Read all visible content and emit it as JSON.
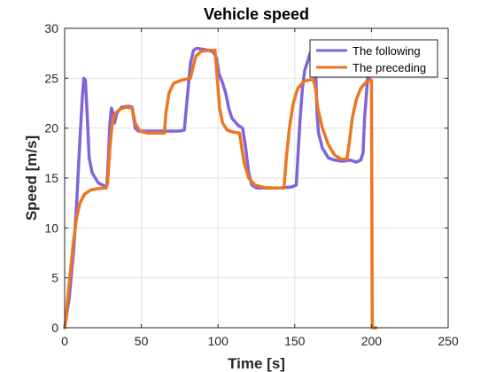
{
  "chart_data": {
    "type": "line",
    "title": "Vehicle speed",
    "xlabel": "Time [s]",
    "ylabel": "Speed [m/s]",
    "xlim": [
      0,
      250
    ],
    "ylim": [
      0,
      30
    ],
    "xticks": [
      0,
      50,
      100,
      150,
      200,
      250
    ],
    "yticks": [
      0,
      5,
      10,
      15,
      20,
      25,
      30
    ],
    "grid": true,
    "legend_position": "top-right",
    "series": [
      {
        "name": "The following",
        "color": "#8064DC",
        "points": [
          [
            0,
            0
          ],
          [
            3,
            3
          ],
          [
            6,
            8
          ],
          [
            8,
            13
          ],
          [
            10,
            19
          ],
          [
            11.5,
            23
          ],
          [
            12.5,
            25
          ],
          [
            13.5,
            24.8
          ],
          [
            14.5,
            22
          ],
          [
            16,
            17
          ],
          [
            18,
            15.5
          ],
          [
            22,
            14.5
          ],
          [
            26,
            14.2
          ],
          [
            27.5,
            14.2
          ],
          [
            28.5,
            17
          ],
          [
            29.5,
            20.5
          ],
          [
            30.5,
            22
          ],
          [
            31.5,
            21.5
          ],
          [
            32.5,
            20.5
          ],
          [
            34,
            21.5
          ],
          [
            37,
            22.1
          ],
          [
            42,
            22.2
          ],
          [
            44,
            22.1
          ],
          [
            45,
            21
          ],
          [
            46,
            20
          ],
          [
            48,
            19.7
          ],
          [
            55,
            19.7
          ],
          [
            65,
            19.7
          ],
          [
            75,
            19.7
          ],
          [
            78,
            19.8
          ],
          [
            79,
            21.5
          ],
          [
            80.5,
            24
          ],
          [
            82,
            26.5
          ],
          [
            84,
            27.8
          ],
          [
            86,
            28
          ],
          [
            90,
            27.9
          ],
          [
            94,
            27.8
          ],
          [
            97,
            27.6
          ],
          [
            99,
            27
          ],
          [
            100.5,
            25.5
          ],
          [
            103,
            24.5
          ],
          [
            105,
            23.5
          ],
          [
            107,
            22
          ],
          [
            109,
            21
          ],
          [
            113,
            20.3
          ],
          [
            116,
            20
          ],
          [
            118,
            18
          ],
          [
            120,
            15.5
          ],
          [
            122,
            14.3
          ],
          [
            125,
            14
          ],
          [
            130,
            14
          ],
          [
            140,
            14
          ],
          [
            148,
            14.1
          ],
          [
            151,
            14.3
          ],
          [
            152,
            17
          ],
          [
            153.5,
            21
          ],
          [
            155,
            24
          ],
          [
            156.5,
            25.8
          ],
          [
            158,
            26.5
          ],
          [
            160,
            27.5
          ],
          [
            162.5,
            27.8
          ],
          [
            163.5,
            26.5
          ],
          [
            164.5,
            21.5
          ],
          [
            165.5,
            19.5
          ],
          [
            168,
            18
          ],
          [
            172,
            17
          ],
          [
            176,
            16.8
          ],
          [
            180,
            16.7
          ],
          [
            182,
            16.7
          ],
          [
            186,
            16.8
          ],
          [
            190,
            16.6
          ],
          [
            193,
            16.8
          ],
          [
            194.5,
            17.5
          ],
          [
            195.5,
            21
          ],
          [
            196.5,
            23
          ],
          [
            197.5,
            25
          ],
          [
            198.5,
            25
          ]
        ]
      },
      {
        "name": "The preceding",
        "color": "#ED7620",
        "points": [
          [
            0,
            0
          ],
          [
            1,
            1
          ],
          [
            2,
            3
          ],
          [
            4,
            6
          ],
          [
            6,
            9
          ],
          [
            8,
            11.2
          ],
          [
            10,
            12.5
          ],
          [
            13,
            13.4
          ],
          [
            17,
            13.8
          ],
          [
            22,
            13.95
          ],
          [
            27,
            14
          ],
          [
            28,
            14.5
          ],
          [
            29.5,
            18
          ],
          [
            31,
            20.5
          ],
          [
            33,
            21.5
          ],
          [
            36,
            21.9
          ],
          [
            40,
            22.1
          ],
          [
            44,
            22
          ],
          [
            46,
            20.5
          ],
          [
            49,
            19.7
          ],
          [
            54,
            19.5
          ],
          [
            60,
            19.5
          ],
          [
            65,
            19.5
          ],
          [
            66,
            21.5
          ],
          [
            68,
            23.5
          ],
          [
            71,
            24.5
          ],
          [
            76,
            24.8
          ],
          [
            82,
            25
          ],
          [
            83.5,
            26
          ],
          [
            85.5,
            27.2
          ],
          [
            89,
            27.7
          ],
          [
            95,
            27.8
          ],
          [
            98,
            27.8
          ],
          [
            99.5,
            25
          ],
          [
            101,
            22
          ],
          [
            103,
            20.5
          ],
          [
            106,
            19.8
          ],
          [
            110,
            19.6
          ],
          [
            114,
            19.5
          ],
          [
            115.5,
            18
          ],
          [
            117,
            16.5
          ],
          [
            120,
            15
          ],
          [
            124,
            14.3
          ],
          [
            130,
            14.05
          ],
          [
            138,
            14
          ],
          [
            143,
            14
          ],
          [
            144.5,
            17
          ],
          [
            146.5,
            20
          ],
          [
            149,
            22.5
          ],
          [
            152,
            24
          ],
          [
            156,
            24.7
          ],
          [
            162,
            24.9
          ],
          [
            163.5,
            24
          ],
          [
            165,
            22
          ],
          [
            168,
            20
          ],
          [
            172,
            18.3
          ],
          [
            176,
            17.3
          ],
          [
            180,
            16.9
          ],
          [
            184,
            16.9
          ],
          [
            185.5,
            18.5
          ],
          [
            187.5,
            21
          ],
          [
            190,
            22.8
          ],
          [
            193,
            24
          ],
          [
            197,
            24.7
          ],
          [
            200,
            24.8
          ],
          [
            200.5,
            0
          ],
          [
            203,
            0
          ]
        ]
      }
    ]
  }
}
